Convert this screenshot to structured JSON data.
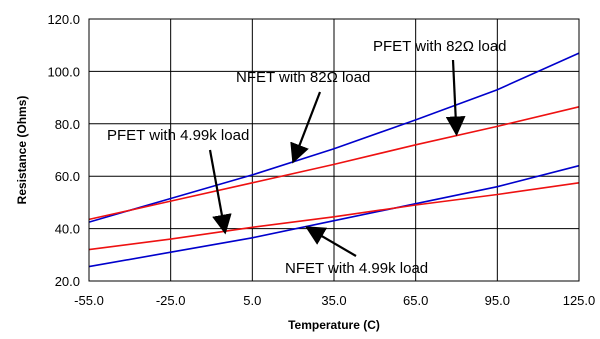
{
  "chart_data": {
    "type": "line",
    "title": "",
    "xlabel": "Temperature (C)",
    "ylabel": "Resistance (Ohms)",
    "xlim": [
      -55,
      125
    ],
    "ylim": [
      20,
      120
    ],
    "xticks": [
      "-55.0",
      "-25.0",
      "5.0",
      "35.0",
      "65.0",
      "95.0",
      "125.0"
    ],
    "yticks": [
      "20.0",
      "40.0",
      "60.0",
      "80.0",
      "100.0",
      "120.0"
    ],
    "grid": true,
    "series": [
      {
        "label": "NFET with 82Ω load",
        "color": "#0000cc",
        "x": [
          -55,
          -25,
          5,
          35,
          65,
          95,
          125
        ],
        "y": [
          42.5,
          51.5,
          60.5,
          70.5,
          81.5,
          93.0,
          107.0
        ]
      },
      {
        "label": "PFET with 82Ω load",
        "color": "#ee1111",
        "x": [
          -55,
          -25,
          5,
          35,
          65,
          95,
          125
        ],
        "y": [
          43.5,
          50.5,
          57.5,
          64.5,
          72.0,
          79.0,
          86.5
        ]
      },
      {
        "label": "NFET with 4.99k load",
        "color": "#0000cc",
        "x": [
          -55,
          -25,
          5,
          35,
          65,
          95,
          125
        ],
        "y": [
          25.5,
          31.0,
          36.5,
          43.0,
          49.5,
          56.0,
          64.0
        ]
      },
      {
        "label": "PFET with 4.99k load",
        "color": "#ee1111",
        "x": [
          -55,
          -25,
          5,
          35,
          65,
          95,
          125
        ],
        "y": [
          32.0,
          36.0,
          40.5,
          44.5,
          49.0,
          53.0,
          57.5
        ]
      }
    ],
    "annotations": [
      {
        "text": "PFET with 82Ω load",
        "arrow_to": [
          80,
          76.0
        ]
      },
      {
        "text": "NFET with 82Ω load",
        "arrow_to": [
          20,
          65.5
        ]
      },
      {
        "text": "PFET with 4.99k load",
        "arrow_to": [
          -5,
          38.5
        ]
      },
      {
        "text": "NFET with 4.99k load",
        "arrow_to": [
          25,
          40.5
        ]
      }
    ]
  }
}
